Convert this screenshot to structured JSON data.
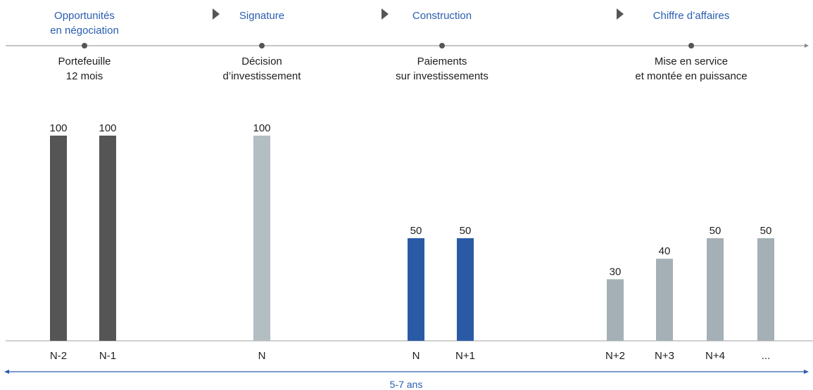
{
  "stages": [
    {
      "title": "Opportunités\nen négociation",
      "description": "Portefeuille\n12 mois"
    },
    {
      "title": "Signature",
      "description": "Décision\nd’investissement"
    },
    {
      "title": "Construction",
      "description": "Paiements\nsur investissements"
    },
    {
      "title": "Chiffre d’affaires",
      "description": "Mise en service\net montée en puissance"
    }
  ],
  "span_label": "5-7 ans",
  "chart_data": {
    "type": "bar",
    "categories": [
      "N-2",
      "N-1",
      "N",
      "N",
      "N+1",
      "N+2",
      "N+3",
      "N+4",
      "..."
    ],
    "values": [
      100,
      100,
      100,
      50,
      50,
      30,
      40,
      50,
      50
    ],
    "value_labels": [
      "100",
      "100",
      "100",
      "50",
      "50",
      "30",
      "40",
      "50",
      "50"
    ],
    "bar_colors": [
      "#555555",
      "#555555",
      "#b3bec3",
      "#2a5aa6",
      "#2a5aa6",
      "#a4b0b5",
      "#a4b0b5",
      "#a4b0b5",
      "#a4b0b5"
    ],
    "ylim": [
      0,
      100
    ],
    "grid": false
  },
  "colors": {
    "stage_title": "#2a5db0",
    "timeline": "#8a8a8a",
    "span_arrow": "#2a5db0",
    "marker": "#555555"
  }
}
